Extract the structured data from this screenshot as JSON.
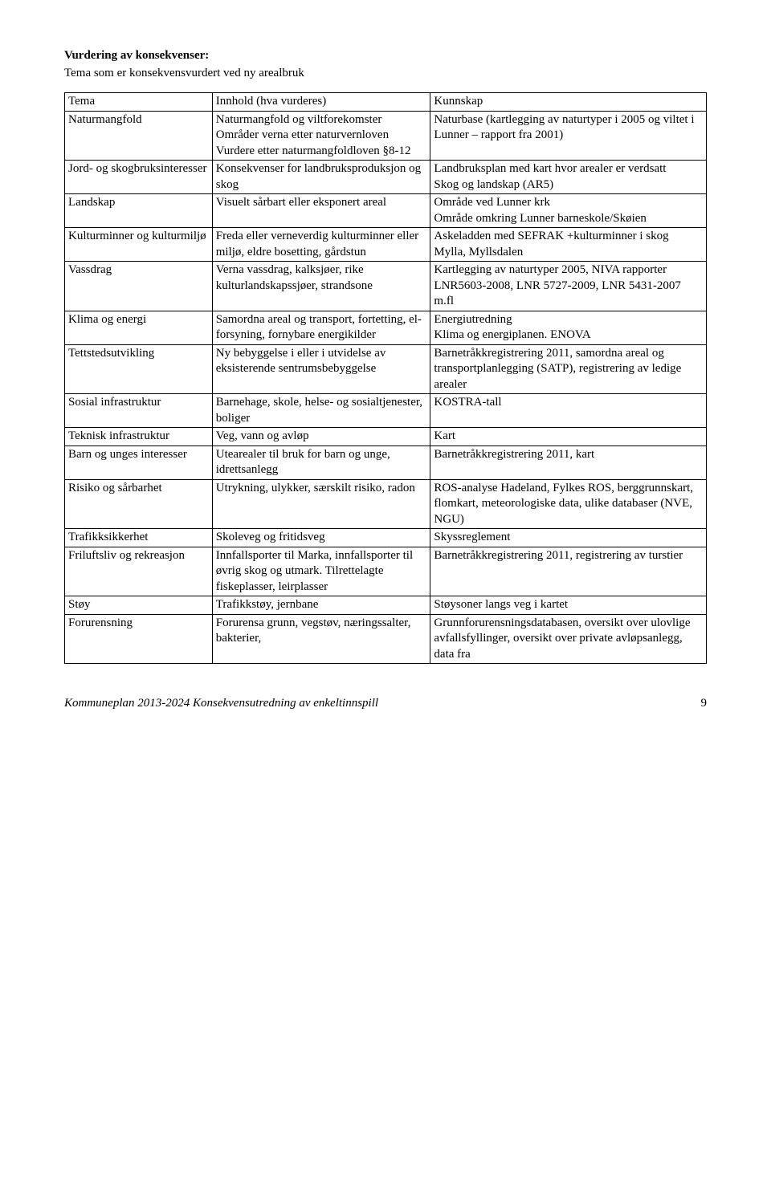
{
  "heading": "Vurdering av konsekvenser:",
  "subheading": "Tema som er konsekvensvurdert ved ny arealbruk",
  "table": {
    "headers": [
      "Tema",
      "Innhold (hva vurderes)",
      "Kunnskap"
    ],
    "rows": [
      [
        "Naturmangfold",
        "Naturmangfold og viltforekomster\nOmråder verna etter naturvernloven\nVurdere etter naturmangfoldloven §8-12",
        "Naturbase (kartlegging av naturtyper i 2005 og viltet i Lunner – rapport fra 2001)"
      ],
      [
        "Jord- og skogbruksinteresser",
        "Konsekvenser for landbruksproduksjon og skog",
        "Landbruksplan med kart hvor arealer er verdsatt\nSkog og landskap (AR5)"
      ],
      [
        "Landskap",
        "Visuelt sårbart eller eksponert areal",
        "Område ved Lunner krk\nOmråde omkring Lunner barneskole/Skøien"
      ],
      [
        "Kulturminner og kulturmiljø",
        "Freda eller verneverdig kulturminner eller miljø, eldre bosetting, gårdstun",
        "Askeladden med SEFRAK +kulturminner i skog Mylla, Myllsdalen"
      ],
      [
        "Vassdrag",
        "Verna vassdrag, kalksjøer, rike kulturlandskapssjøer, strandsone",
        "Kartlegging av naturtyper 2005, NIVA rapporter LNR5603-2008, LNR 5727-2009, LNR 5431-2007 m.fl"
      ],
      [
        "Klima og energi",
        "Samordna areal og transport, fortetting, el-forsyning, fornybare energikilder",
        "Energiutredning\nKlima og energiplanen. ENOVA"
      ],
      [
        "Tettstedsutvikling",
        "Ny bebyggelse i eller i utvidelse av eksisterende sentrumsbebyggelse",
        "Barnetråkkregistrering 2011, samordna areal og transportplanlegging (SATP), registrering av ledige arealer"
      ],
      [
        "Sosial infrastruktur",
        "Barnehage, skole, helse- og sosialtjenester, boliger",
        "KOSTRA-tall"
      ],
      [
        "Teknisk infrastruktur",
        "Veg, vann og avløp",
        "Kart"
      ],
      [
        "Barn og unges interesser",
        "Utearealer til bruk for barn og unge, idrettsanlegg",
        "Barnetråkkregistrering 2011, kart"
      ],
      [
        "Risiko og sårbarhet",
        "Utrykning, ulykker, særskilt risiko, radon",
        "ROS-analyse Hadeland, Fylkes ROS, berggrunnskart, flomkart, meteorologiske data, ulike databaser (NVE, NGU)"
      ],
      [
        "Trafikksikkerhet",
        "Skoleveg og fritidsveg",
        "Skyssreglement"
      ],
      [
        "Friluftsliv og rekreasjon",
        "Innfallsporter til Marka, innfallsporter til øvrig skog og utmark. Tilrettelagte fiskeplasser, leirplasser",
        "Barnetråkkregistrering 2011, registrering av turstier"
      ],
      [
        "Støy",
        "Trafikkstøy, jernbane",
        "Støysoner langs veg i kartet"
      ],
      [
        "Forurensning",
        "Forurensa grunn, vegstøv, næringssalter, bakterier,",
        "Grunnforurensningsdatabasen, oversikt over ulovlige avfallsfyllinger, oversikt over private avløpsanlegg, data fra"
      ]
    ]
  },
  "footer": {
    "text": "Kommuneplan 2013-2024 Konsekvensutredning av enkeltinnspill",
    "page": "9"
  }
}
